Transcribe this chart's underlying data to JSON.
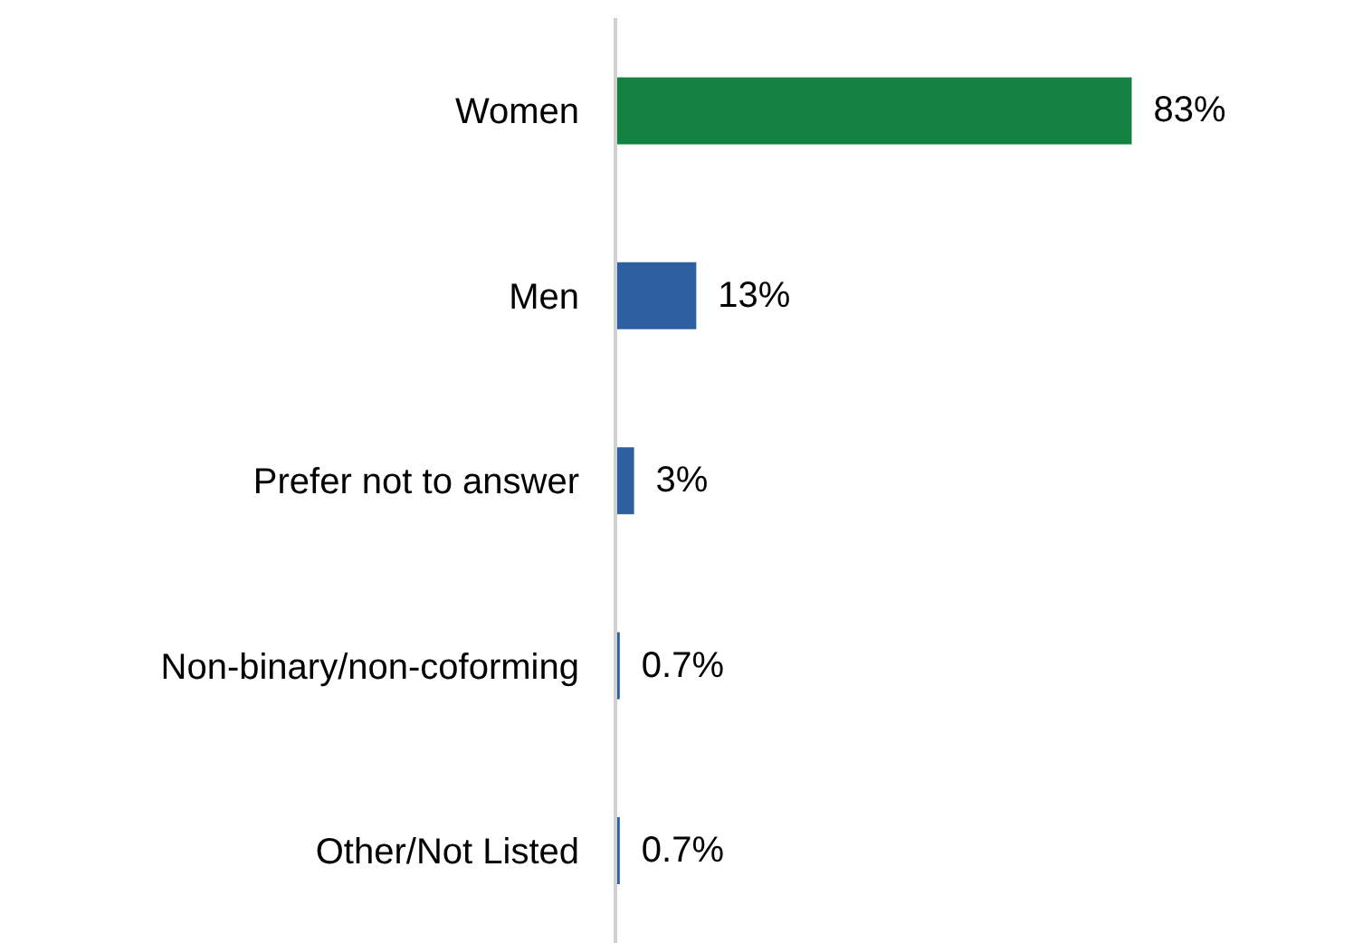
{
  "chart_data": {
    "type": "bar",
    "orientation": "horizontal",
    "categories": [
      "Women",
      "Men",
      "Prefer not to answer",
      "Non-binary/non-coforming",
      "Other/Not Listed"
    ],
    "values": [
      83,
      13,
      3,
      0.7,
      0.7
    ],
    "colors": [
      "#13813f",
      "#2e5fa0",
      "#2e5fa0",
      "#2e5fa0",
      "#2e5fa0"
    ],
    "value_labels": [
      "83%",
      "13%",
      "3%",
      "0.7%",
      "0.7%"
    ],
    "grid": false
  }
}
